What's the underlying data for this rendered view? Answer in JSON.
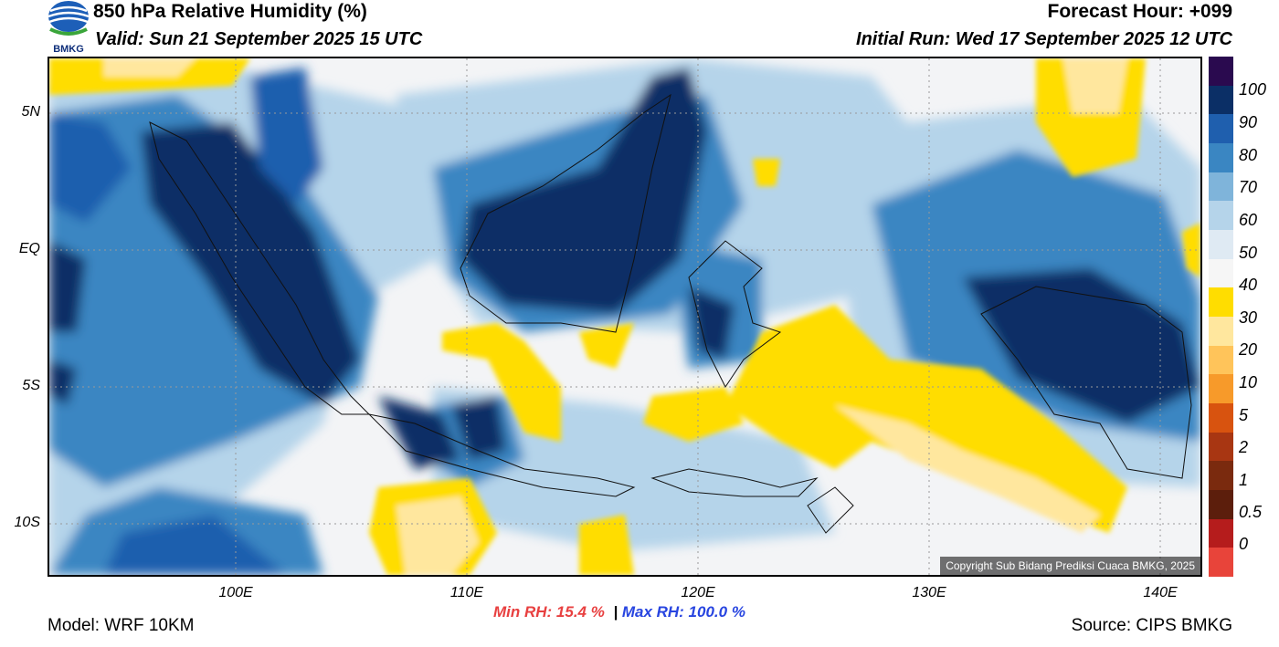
{
  "header": {
    "title": "850 hPa Relative Humidity (%)",
    "valid": "Valid: Sun 21 September 2025 15 UTC",
    "forecast_hour": "Forecast Hour: +099",
    "initial_run": "Initial Run: Wed 17 September 2025 12 UTC",
    "logo_text": "BMKG"
  },
  "map": {
    "lat_labels": [
      "5N",
      "EQ",
      "5S",
      "10S"
    ],
    "lon_labels": [
      "100E",
      "110E",
      "120E",
      "130E",
      "140E"
    ],
    "copyright": "Copyright Sub Bidang Prediksi Cuaca BMKG, 2025"
  },
  "colorbar": {
    "labels": [
      "100",
      "90",
      "80",
      "70",
      "60",
      "50",
      "40",
      "30",
      "20",
      "10",
      "5",
      "2",
      "1",
      "0.5",
      "0"
    ],
    "colors": [
      "#2a0a4f",
      "#0b2f66",
      "#1f5fae",
      "#3a86c2",
      "#7fb4da",
      "#b5d4ea",
      "#dfeaf3",
      "#f6f6f6",
      "#ffdd00",
      "#ffe79e",
      "#ffc45a",
      "#f79a2a",
      "#d8530f",
      "#a83612",
      "#7a2a0e",
      "#5c1e0c",
      "#b51c1c",
      "#e8443a"
    ]
  },
  "footer": {
    "model": "Model: WRF 10KM",
    "min_rh": "Min RH:  15.4 %",
    "separator": "|",
    "max_rh": "Max RH: 100.0 %",
    "source": "Source: CIPS BMKG"
  }
}
